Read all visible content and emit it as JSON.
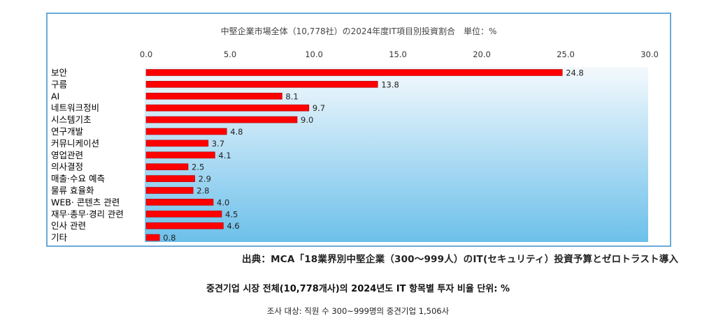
{
  "chart_data": {
    "type": "bar",
    "orientation": "horizontal",
    "title": "中堅企業市場全体（10,778社）の2024年度IT項目別投資割合　単位：%",
    "categories": [
      "보안",
      "구름",
      "AI",
      "네트워크정비",
      "시스템기초",
      "연구개발",
      "커뮤니케이션",
      "영업관련",
      "의사결정",
      "매출·수요 예측",
      "물류 효율화",
      "WEB· 콘텐츠 관련",
      "재무·총무·경리 관련",
      "인사 관련",
      "기타"
    ],
    "values": [
      24.8,
      13.8,
      8.1,
      9.7,
      9.0,
      4.8,
      3.7,
      4.1,
      2.5,
      2.9,
      2.8,
      4.0,
      4.5,
      4.6,
      0.8
    ],
    "value_labels": [
      "24.8",
      "13.8",
      "8.1",
      "9.7",
      "9.0",
      "4.8",
      "3.7",
      "4.1",
      "2.5",
      "2.9",
      "2.8",
      "4.0",
      "4.5",
      "4.6",
      "0.8"
    ],
    "xlim": [
      0,
      30
    ],
    "x_ticks": [
      "0.0",
      "5.0",
      "10.0",
      "15.0",
      "20.0",
      "25.0",
      "30.0"
    ],
    "axis_position": "top",
    "grid": false,
    "legend": "none",
    "colors": {
      "bar": "#ff0000",
      "bar_edge": "#b00000",
      "plot_bg_top": "#f4f9fd",
      "plot_bg_bottom": "#6cc0ea",
      "frame": "#6aaad8"
    }
  },
  "source_text": "出典：MCA「18業界別中堅企業（300～999人）のIT(セキュリティ）投資予算とゼロトラスト導入",
  "caption": {
    "title": "중견기업 시장 전체(10,778개사)의 2024년도 IT 항목별 투자 비율 단위: %",
    "note": "조사 대상: 직원 수 300~999명의 중견기업 1,506사"
  }
}
